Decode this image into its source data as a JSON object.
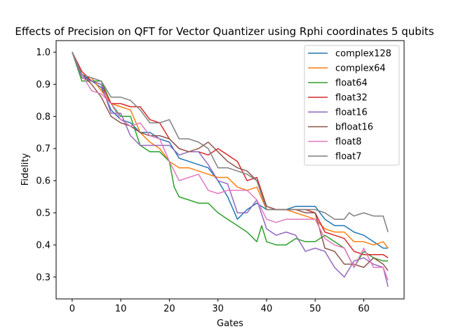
{
  "chart_data": {
    "type": "line",
    "title": "Effects of Precision on QFT for Vector Quantizer using Rphi coordinates 5 qubits",
    "xlabel": "Gates",
    "ylabel": "Fidelity",
    "xlim": [
      -3.3,
      68.3
    ],
    "ylim": [
      0.232,
      1.036
    ],
    "xticks": [
      0,
      10,
      20,
      30,
      40,
      50,
      60
    ],
    "yticks": [
      0.3,
      0.4,
      0.5,
      0.6,
      0.7,
      0.8,
      0.9,
      1.0
    ],
    "grid": false,
    "legend_position": "top-right",
    "series": [
      {
        "name": "complex128",
        "color": "#1f77b4",
        "points": [
          [
            0,
            1.0
          ],
          [
            2,
            0.93
          ],
          [
            4,
            0.91
          ],
          [
            6,
            0.89
          ],
          [
            8,
            0.82
          ],
          [
            10,
            0.79
          ],
          [
            12,
            0.78
          ],
          [
            14,
            0.75
          ],
          [
            16,
            0.75
          ],
          [
            18,
            0.73
          ],
          [
            20,
            0.72
          ],
          [
            22,
            0.67
          ],
          [
            24,
            0.66
          ],
          [
            26,
            0.65
          ],
          [
            28,
            0.64
          ],
          [
            30,
            0.6
          ],
          [
            32,
            0.55
          ],
          [
            34,
            0.48
          ],
          [
            36,
            0.51
          ],
          [
            38,
            0.53
          ],
          [
            40,
            0.51
          ],
          [
            42,
            0.51
          ],
          [
            44,
            0.51
          ],
          [
            46,
            0.52
          ],
          [
            48,
            0.52
          ],
          [
            50,
            0.52
          ],
          [
            52,
            0.48
          ],
          [
            54,
            0.46
          ],
          [
            56,
            0.46
          ],
          [
            58,
            0.44
          ],
          [
            60,
            0.43
          ],
          [
            62,
            0.41
          ],
          [
            64,
            0.39
          ],
          [
            65,
            0.39
          ]
        ]
      },
      {
        "name": "complex64",
        "color": "#ff7f0e",
        "points": [
          [
            0,
            1.0
          ],
          [
            2,
            0.93
          ],
          [
            4,
            0.92
          ],
          [
            6,
            0.88
          ],
          [
            8,
            0.84
          ],
          [
            10,
            0.83
          ],
          [
            12,
            0.82
          ],
          [
            14,
            0.75
          ],
          [
            16,
            0.72
          ],
          [
            18,
            0.7
          ],
          [
            20,
            0.66
          ],
          [
            22,
            0.64
          ],
          [
            24,
            0.64
          ],
          [
            26,
            0.63
          ],
          [
            28,
            0.62
          ],
          [
            30,
            0.61
          ],
          [
            32,
            0.61
          ],
          [
            34,
            0.58
          ],
          [
            36,
            0.57
          ],
          [
            38,
            0.58
          ],
          [
            40,
            0.51
          ],
          [
            42,
            0.51
          ],
          [
            44,
            0.51
          ],
          [
            46,
            0.5
          ],
          [
            48,
            0.49
          ],
          [
            50,
            0.48
          ],
          [
            52,
            0.45
          ],
          [
            54,
            0.44
          ],
          [
            56,
            0.44
          ],
          [
            58,
            0.41
          ],
          [
            60,
            0.41
          ],
          [
            62,
            0.4
          ],
          [
            64,
            0.41
          ],
          [
            65,
            0.39
          ]
        ]
      },
      {
        "name": "float64",
        "color": "#2ca02c",
        "points": [
          [
            0,
            1.0
          ],
          [
            2,
            0.91
          ],
          [
            4,
            0.91
          ],
          [
            6,
            0.91
          ],
          [
            8,
            0.84
          ],
          [
            10,
            0.8
          ],
          [
            12,
            0.8
          ],
          [
            14,
            0.71
          ],
          [
            16,
            0.69
          ],
          [
            18,
            0.69
          ],
          [
            20,
            0.66
          ],
          [
            21,
            0.58
          ],
          [
            22,
            0.55
          ],
          [
            24,
            0.54
          ],
          [
            26,
            0.53
          ],
          [
            28,
            0.53
          ],
          [
            30,
            0.5
          ],
          [
            32,
            0.48
          ],
          [
            34,
            0.46
          ],
          [
            36,
            0.44
          ],
          [
            38,
            0.41
          ],
          [
            39,
            0.46
          ],
          [
            40,
            0.41
          ],
          [
            42,
            0.4
          ],
          [
            44,
            0.4
          ],
          [
            46,
            0.42
          ],
          [
            48,
            0.41
          ],
          [
            50,
            0.41
          ],
          [
            52,
            0.43
          ],
          [
            54,
            0.41
          ],
          [
            56,
            0.39
          ],
          [
            58,
            0.33
          ],
          [
            60,
            0.38
          ],
          [
            62,
            0.36
          ],
          [
            64,
            0.35
          ],
          [
            65,
            0.35
          ]
        ]
      },
      {
        "name": "float32",
        "color": "#d62728",
        "points": [
          [
            0,
            1.0
          ],
          [
            2,
            0.94
          ],
          [
            4,
            0.91
          ],
          [
            6,
            0.9
          ],
          [
            8,
            0.84
          ],
          [
            10,
            0.84
          ],
          [
            12,
            0.83
          ],
          [
            14,
            0.83
          ],
          [
            16,
            0.79
          ],
          [
            18,
            0.78
          ],
          [
            20,
            0.73
          ],
          [
            22,
            0.7
          ],
          [
            24,
            0.69
          ],
          [
            26,
            0.69
          ],
          [
            28,
            0.68
          ],
          [
            30,
            0.7
          ],
          [
            32,
            0.68
          ],
          [
            34,
            0.66
          ],
          [
            36,
            0.6
          ],
          [
            38,
            0.61
          ],
          [
            40,
            0.52
          ],
          [
            42,
            0.51
          ],
          [
            44,
            0.51
          ],
          [
            46,
            0.51
          ],
          [
            48,
            0.51
          ],
          [
            50,
            0.5
          ],
          [
            52,
            0.44
          ],
          [
            54,
            0.43
          ],
          [
            56,
            0.42
          ],
          [
            58,
            0.38
          ],
          [
            60,
            0.37
          ],
          [
            62,
            0.37
          ],
          [
            64,
            0.37
          ],
          [
            65,
            0.36
          ]
        ]
      },
      {
        "name": "float16",
        "color": "#9467bd",
        "points": [
          [
            0,
            1.0
          ],
          [
            2,
            0.92
          ],
          [
            4,
            0.91
          ],
          [
            6,
            0.9
          ],
          [
            8,
            0.81
          ],
          [
            10,
            0.81
          ],
          [
            12,
            0.74
          ],
          [
            14,
            0.71
          ],
          [
            16,
            0.71
          ],
          [
            18,
            0.71
          ],
          [
            20,
            0.71
          ],
          [
            22,
            0.68
          ],
          [
            24,
            0.69
          ],
          [
            26,
            0.69
          ],
          [
            28,
            0.65
          ],
          [
            30,
            0.6
          ],
          [
            32,
            0.59
          ],
          [
            34,
            0.5
          ],
          [
            36,
            0.5
          ],
          [
            38,
            0.54
          ],
          [
            40,
            0.45
          ],
          [
            42,
            0.43
          ],
          [
            44,
            0.44
          ],
          [
            46,
            0.43
          ],
          [
            48,
            0.38
          ],
          [
            50,
            0.39
          ],
          [
            52,
            0.38
          ],
          [
            54,
            0.33
          ],
          [
            56,
            0.3
          ],
          [
            58,
            0.35
          ],
          [
            60,
            0.36
          ],
          [
            62,
            0.34
          ],
          [
            64,
            0.33
          ],
          [
            65,
            0.27
          ]
        ]
      },
      {
        "name": "bfloat16",
        "color": "#8c564b",
        "points": [
          [
            0,
            1.0
          ],
          [
            2,
            0.93
          ],
          [
            4,
            0.9
          ],
          [
            6,
            0.86
          ],
          [
            8,
            0.8
          ],
          [
            10,
            0.78
          ],
          [
            12,
            0.77
          ],
          [
            14,
            0.75
          ],
          [
            16,
            0.74
          ],
          [
            18,
            0.74
          ],
          [
            20,
            0.73
          ],
          [
            22,
            0.7
          ],
          [
            24,
            0.69
          ],
          [
            26,
            0.7
          ],
          [
            28,
            0.72
          ],
          [
            30,
            0.69
          ],
          [
            32,
            0.66
          ],
          [
            34,
            0.64
          ],
          [
            36,
            0.63
          ],
          [
            38,
            0.6
          ],
          [
            40,
            0.52
          ],
          [
            42,
            0.51
          ],
          [
            44,
            0.51
          ],
          [
            46,
            0.51
          ],
          [
            48,
            0.5
          ],
          [
            50,
            0.5
          ],
          [
            52,
            0.39
          ],
          [
            54,
            0.38
          ],
          [
            56,
            0.34
          ],
          [
            58,
            0.34
          ],
          [
            60,
            0.33
          ],
          [
            62,
            0.36
          ],
          [
            64,
            0.34
          ],
          [
            65,
            0.32
          ]
        ]
      },
      {
        "name": "float8",
        "color": "#e377c2",
        "points": [
          [
            0,
            1.0
          ],
          [
            2,
            0.93
          ],
          [
            4,
            0.88
          ],
          [
            6,
            0.87
          ],
          [
            8,
            0.84
          ],
          [
            10,
            0.79
          ],
          [
            12,
            0.77
          ],
          [
            14,
            0.78
          ],
          [
            16,
            0.74
          ],
          [
            18,
            0.73
          ],
          [
            20,
            0.66
          ],
          [
            22,
            0.6
          ],
          [
            24,
            0.61
          ],
          [
            26,
            0.62
          ],
          [
            28,
            0.57
          ],
          [
            30,
            0.56
          ],
          [
            32,
            0.57
          ],
          [
            34,
            0.57
          ],
          [
            36,
            0.57
          ],
          [
            38,
            0.54
          ],
          [
            40,
            0.48
          ],
          [
            42,
            0.47
          ],
          [
            44,
            0.48
          ],
          [
            46,
            0.48
          ],
          [
            48,
            0.48
          ],
          [
            50,
            0.48
          ],
          [
            52,
            0.42
          ],
          [
            54,
            0.4
          ],
          [
            56,
            0.39
          ],
          [
            58,
            0.33
          ],
          [
            60,
            0.39
          ],
          [
            62,
            0.33
          ],
          [
            64,
            0.33
          ],
          [
            65,
            0.29
          ]
        ]
      },
      {
        "name": "float7",
        "color": "#7f7f7f",
        "points": [
          [
            0,
            1.0
          ],
          [
            2,
            0.93
          ],
          [
            4,
            0.92
          ],
          [
            6,
            0.91
          ],
          [
            8,
            0.86
          ],
          [
            10,
            0.86
          ],
          [
            12,
            0.85
          ],
          [
            14,
            0.82
          ],
          [
            16,
            0.78
          ],
          [
            18,
            0.78
          ],
          [
            20,
            0.79
          ],
          [
            22,
            0.73
          ],
          [
            24,
            0.73
          ],
          [
            26,
            0.72
          ],
          [
            28,
            0.7
          ],
          [
            30,
            0.64
          ],
          [
            32,
            0.64
          ],
          [
            34,
            0.63
          ],
          [
            36,
            0.62
          ],
          [
            38,
            0.6
          ],
          [
            40,
            0.51
          ],
          [
            42,
            0.51
          ],
          [
            44,
            0.51
          ],
          [
            46,
            0.51
          ],
          [
            48,
            0.51
          ],
          [
            50,
            0.51
          ],
          [
            52,
            0.5
          ],
          [
            54,
            0.48
          ],
          [
            56,
            0.48
          ],
          [
            57,
            0.5
          ],
          [
            58,
            0.49
          ],
          [
            60,
            0.5
          ],
          [
            62,
            0.49
          ],
          [
            64,
            0.49
          ],
          [
            65,
            0.44
          ]
        ]
      }
    ]
  }
}
